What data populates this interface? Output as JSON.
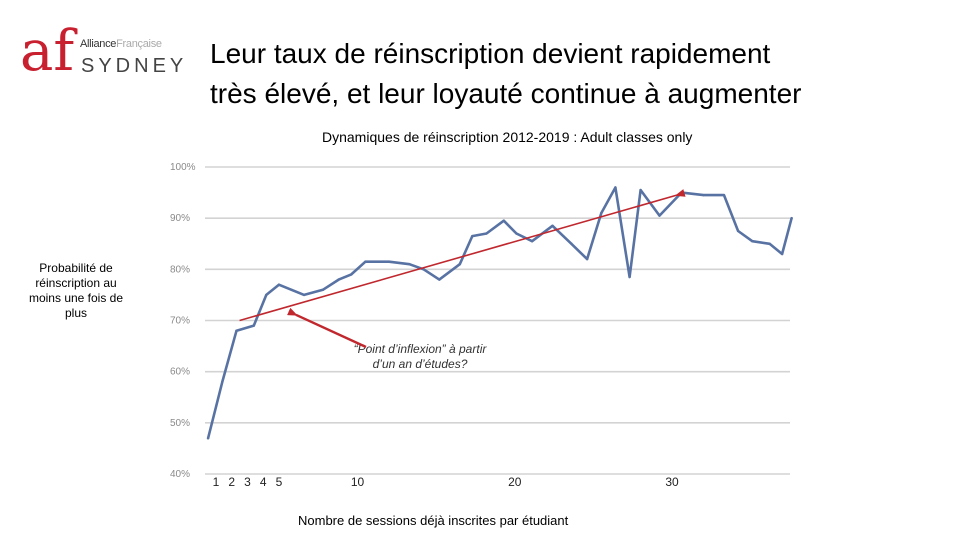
{
  "logo": {
    "mark": "af",
    "brand_line_1": "Alliance",
    "brand_line_2": "Française",
    "city": "SYDNEY",
    "colors": {
      "mark": "#c8202f",
      "text": "#444444"
    }
  },
  "header": {
    "title_line_1": "Leur taux de réinscription devient rapidement",
    "title_line_2": "très élevé, et leur loyauté continue à augmenter"
  },
  "chart_data": {
    "type": "line",
    "title": "Dynamiques de réinscription 2012-2019 : Adult classes only",
    "xlabel": "Nombre de sessions déjà inscrites par étudiant",
    "ylabel": "Probabilité de réinscription au moins une fois de plus",
    "ylim": [
      40,
      100
    ],
    "xlim": [
      0.3,
      37.5
    ],
    "yticks": [
      {
        "value": 100,
        "label": "100%"
      },
      {
        "value": 90,
        "label": "90%"
      },
      {
        "value": 80,
        "label": "80%"
      },
      {
        "value": 70,
        "label": "70%"
      },
      {
        "value": 60,
        "label": "60%"
      },
      {
        "value": 50,
        "label": "50%"
      },
      {
        "value": 40,
        "label": "40%"
      }
    ],
    "xticks": [
      {
        "value": 1,
        "label": "1"
      },
      {
        "value": 2,
        "label": "2"
      },
      {
        "value": 3,
        "label": "3"
      },
      {
        "value": 4,
        "label": "4"
      },
      {
        "value": 5,
        "label": "5"
      },
      {
        "value": 10,
        "label": "10"
      },
      {
        "value": 20,
        "label": "20"
      },
      {
        "value": 30,
        "label": "30"
      }
    ],
    "grid": true,
    "series": [
      {
        "name": "Probabilité de réinscription",
        "color": "#5873a3",
        "x": [
          0.5,
          1.4,
          2.3,
          3.4,
          4.2,
          5.0,
          5.8,
          6.6,
          7.8,
          8.8,
          9.6,
          10.5,
          12.0,
          13.3,
          14.2,
          15.2,
          16.5,
          17.3,
          18.2,
          19.3,
          20.1,
          21.1,
          22.4,
          23.6,
          24.6,
          25.5,
          26.4,
          27.3,
          28.0,
          29.2,
          30.6,
          32.0,
          33.3,
          34.2,
          35.1,
          36.2,
          37.0,
          37.6
        ],
        "values": [
          47,
          58,
          68,
          69,
          75,
          77,
          76,
          75,
          76,
          78,
          79,
          81.5,
          81.5,
          81,
          80,
          78,
          81,
          86.5,
          87,
          89.5,
          87,
          85.5,
          88.5,
          85,
          82,
          91,
          96,
          78.5,
          95.5,
          90.5,
          95,
          94.5,
          94.5,
          87.5,
          85.5,
          85,
          83,
          90
        ]
      }
    ],
    "trend_line": {
      "color": "#c0282e",
      "from": [
        2.5,
        70
      ],
      "to": [
        30.3,
        94.5
      ]
    },
    "annotation": {
      "text_line_1": "“Point d’inflexion” à partir",
      "text_line_2": "d’un an d’études?",
      "color": "#c0282e",
      "arrow_to": [
        5.7,
        71.5
      ]
    }
  }
}
